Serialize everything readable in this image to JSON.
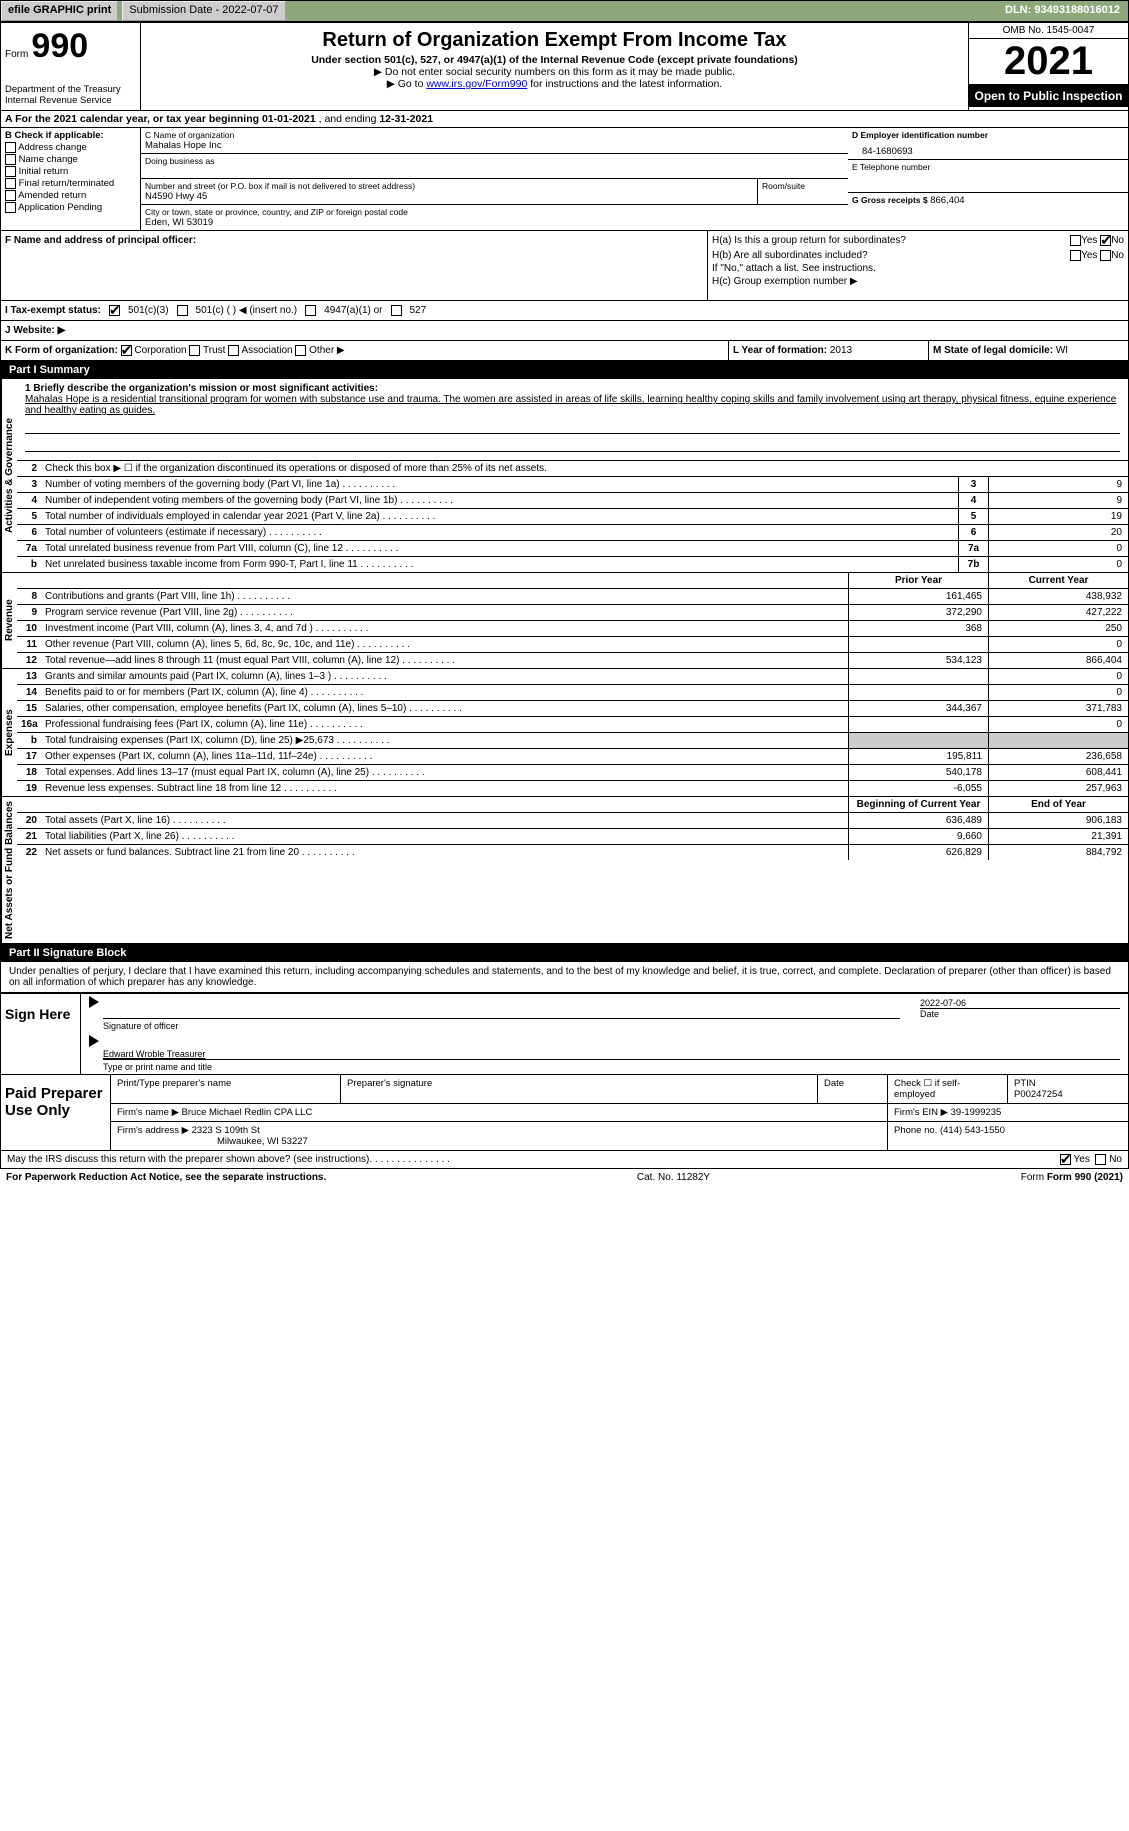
{
  "topbar": {
    "efile_btn": "efile GRAPHIC print",
    "submission_label": "Submission Date - 2022-07-07",
    "dln": "DLN: 93493188016012"
  },
  "header": {
    "form_word": "Form",
    "form_num": "990",
    "dept": "Department of the Treasury",
    "irs": "Internal Revenue Service",
    "title": "Return of Organization Exempt From Income Tax",
    "sub1": "Under section 501(c), 527, or 4947(a)(1) of the Internal Revenue Code (except private foundations)",
    "sub2": "▶ Do not enter social security numbers on this form as it may be made public.",
    "sub3_pre": "▶ Go to ",
    "sub3_link": "www.irs.gov/Form990",
    "sub3_post": " for instructions and the latest information.",
    "omb": "OMB No. 1545-0047",
    "year": "2021",
    "open": "Open to Public Inspection"
  },
  "periodA": {
    "text_pre": "A For the 2021 calendar year, or tax year beginning ",
    "begin": "01-01-2021",
    "text_mid": " , and ending ",
    "end": "12-31-2021"
  },
  "sectionB": {
    "label": "B Check if applicable:",
    "items": [
      "Address change",
      "Name change",
      "Initial return",
      "Final return/terminated",
      "Amended return",
      "Application Pending"
    ]
  },
  "sectionC": {
    "name_label": "C Name of organization",
    "name": "Mahalas Hope Inc",
    "dba_label": "Doing business as",
    "addr_label": "Number and street (or P.O. box if mail is not delivered to street address)",
    "room_label": "Room/suite",
    "addr": "N4590 Hwy 45",
    "city_label": "City or town, state or province, country, and ZIP or foreign postal code",
    "city": "Eden, WI  53019"
  },
  "sectionD": {
    "label": "D Employer identification number",
    "ein": "84-1680693"
  },
  "sectionE": {
    "label": "E Telephone number"
  },
  "sectionG": {
    "label": "G Gross receipts $",
    "value": "866,404"
  },
  "sectionF": {
    "label": "F  Name and address of principal officer:"
  },
  "sectionH": {
    "ha": "H(a)  Is this a group return for subordinates?",
    "hb": "H(b)  Are all subordinates included?",
    "hb_note": "If \"No,\" attach a list. See instructions.",
    "hc": "H(c)  Group exemption number ▶",
    "yes": "Yes",
    "no": "No"
  },
  "sectionI": {
    "label": "I  Tax-exempt status:",
    "opt1": "501(c)(3)",
    "opt2": "501(c) (  ) ◀ (insert no.)",
    "opt3": "4947(a)(1) or",
    "opt4": "527"
  },
  "sectionJ": {
    "label": "J  Website: ▶"
  },
  "sectionK": {
    "label": "K Form of organization:",
    "opts": [
      "Corporation",
      "Trust",
      "Association",
      "Other ▶"
    ],
    "l_label": "L Year of formation:",
    "l_val": "2013",
    "m_label": "M State of legal domicile:",
    "m_val": "WI"
  },
  "partI": {
    "header": "Part I      Summary",
    "q1_label": "1  Briefly describe the organization's mission or most significant activities:",
    "q1_text": "Mahalas Hope is a residential transitional program for women with substance use and trauma. The women are assisted in areas of life skills, learning healthy coping skills and family involvement using art therapy, physical fitness, equine experience and healthy eating as guides.",
    "q2": "Check this box ▶ ☐  if the organization discontinued its operations or disposed of more than 25% of its net assets.",
    "rows_top": [
      {
        "n": "3",
        "label": "Number of voting members of the governing body (Part VI, line 1a)",
        "box": "3",
        "val": "9"
      },
      {
        "n": "4",
        "label": "Number of independent voting members of the governing body (Part VI, line 1b)",
        "box": "4",
        "val": "9"
      },
      {
        "n": "5",
        "label": "Total number of individuals employed in calendar year 2021 (Part V, line 2a)",
        "box": "5",
        "val": "19"
      },
      {
        "n": "6",
        "label": "Total number of volunteers (estimate if necessary)",
        "box": "6",
        "val": "20"
      },
      {
        "n": "7a",
        "label": "Total unrelated business revenue from Part VIII, column (C), line 12",
        "box": "7a",
        "val": "0"
      },
      {
        "n": "b",
        "label": "Net unrelated business taxable income from Form 990-T, Part I, line 11",
        "box": "7b",
        "val": "0"
      }
    ],
    "col_headers": {
      "prior": "Prior Year",
      "current": "Current Year"
    },
    "revenue": [
      {
        "n": "8",
        "label": "Contributions and grants (Part VIII, line 1h)",
        "p": "161,465",
        "c": "438,932"
      },
      {
        "n": "9",
        "label": "Program service revenue (Part VIII, line 2g)",
        "p": "372,290",
        "c": "427,222"
      },
      {
        "n": "10",
        "label": "Investment income (Part VIII, column (A), lines 3, 4, and 7d )",
        "p": "368",
        "c": "250"
      },
      {
        "n": "11",
        "label": "Other revenue (Part VIII, column (A), lines 5, 6d, 8c, 9c, 10c, and 11e)",
        "p": "",
        "c": "0"
      },
      {
        "n": "12",
        "label": "Total revenue—add lines 8 through 11 (must equal Part VIII, column (A), line 12)",
        "p": "534,123",
        "c": "866,404"
      }
    ],
    "expenses": [
      {
        "n": "13",
        "label": "Grants and similar amounts paid (Part IX, column (A), lines 1–3 )",
        "p": "",
        "c": "0"
      },
      {
        "n": "14",
        "label": "Benefits paid to or for members (Part IX, column (A), line 4)",
        "p": "",
        "c": "0"
      },
      {
        "n": "15",
        "label": "Salaries, other compensation, employee benefits (Part IX, column (A), lines 5–10)",
        "p": "344,367",
        "c": "371,783"
      },
      {
        "n": "16a",
        "label": "Professional fundraising fees (Part IX, column (A), line 11e)",
        "p": "",
        "c": "0"
      },
      {
        "n": "b",
        "label": "Total fundraising expenses (Part IX, column (D), line 25) ▶25,673",
        "p": "GRAY",
        "c": "GRAY"
      },
      {
        "n": "17",
        "label": "Other expenses (Part IX, column (A), lines 11a–11d, 11f–24e)",
        "p": "195,811",
        "c": "236,658"
      },
      {
        "n": "18",
        "label": "Total expenses. Add lines 13–17 (must equal Part IX, column (A), line 25)",
        "p": "540,178",
        "c": "608,441"
      },
      {
        "n": "19",
        "label": "Revenue less expenses. Subtract line 18 from line 12",
        "p": "-6,055",
        "c": "257,963"
      }
    ],
    "net_headers": {
      "begin": "Beginning of Current Year",
      "end": "End of Year"
    },
    "netassets": [
      {
        "n": "20",
        "label": "Total assets (Part X, line 16)",
        "p": "636,489",
        "c": "906,183"
      },
      {
        "n": "21",
        "label": "Total liabilities (Part X, line 26)",
        "p": "9,660",
        "c": "21,391"
      },
      {
        "n": "22",
        "label": "Net assets or fund balances. Subtract line 21 from line 20",
        "p": "626,829",
        "c": "884,792"
      }
    ],
    "sidebars": {
      "gov": "Activities & Governance",
      "rev": "Revenue",
      "exp": "Expenses",
      "net": "Net Assets or Fund Balances"
    }
  },
  "partII": {
    "header": "Part II     Signature Block",
    "penalties": "Under penalties of perjury, I declare that I have examined this return, including accompanying schedules and statements, and to the best of my knowledge and belief, it is true, correct, and complete. Declaration of preparer (other than officer) is based on all information of which preparer has any knowledge.",
    "sign_here": "Sign Here",
    "sig_officer": "Signature of officer",
    "sig_date": "Date",
    "sig_date_val": "2022-07-06",
    "officer_name": "Edward Wroble  Treasurer",
    "name_title": "Type or print name and title",
    "paid_label": "Paid Preparer Use Only",
    "prep_name_label": "Print/Type preparer's name",
    "prep_sig_label": "Preparer's signature",
    "date_label": "Date",
    "check_if": "Check ☐ if self-employed",
    "ptin_label": "PTIN",
    "ptin": "P00247254",
    "firm_name_label": "Firm's name      ▶",
    "firm_name": "Bruce Michael Redlin CPA LLC",
    "firm_ein_label": "Firm's EIN ▶",
    "firm_ein": "39-1999235",
    "firm_addr_label": "Firm's address ▶",
    "firm_addr": "2323 S 109th St",
    "firm_city": "Milwaukee, WI  53227",
    "phone_label": "Phone no.",
    "phone": "(414) 543-1550",
    "discuss": "May the IRS discuss this return with the preparer shown above? (see instructions)",
    "yes": "Yes",
    "no": "No"
  },
  "footer": {
    "pra": "For Paperwork Reduction Act Notice, see the separate instructions.",
    "cat": "Cat. No. 11282Y",
    "form": "Form 990 (2021)"
  }
}
